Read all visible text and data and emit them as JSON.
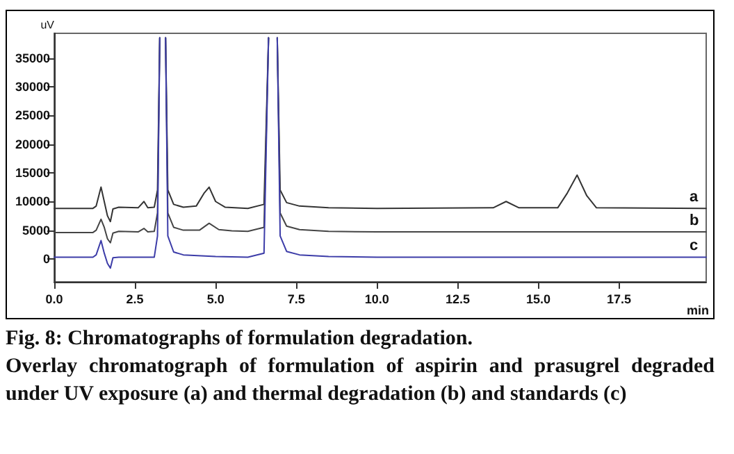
{
  "chart_data": {
    "type": "line",
    "title": "Fig. 8: Chromatographs of formulation degradation.",
    "subtitle": "Overlay chromatograph of formulation of aspirin and prasugrel degraded under UV exposure (a) and thermal degradation (b) and standards (c)",
    "xlabel": "min",
    "ylabel": "uV",
    "xlim": [
      0,
      20.2
    ],
    "xticks": [
      {
        "value": 0,
        "label": "0.0"
      },
      {
        "value": 2.5,
        "label": "2.5"
      },
      {
        "value": 5,
        "label": "5.0"
      },
      {
        "value": 7.5,
        "label": "7.5"
      },
      {
        "value": 10,
        "label": "10.0"
      },
      {
        "value": 12.5,
        "label": "12.5"
      },
      {
        "value": 15,
        "label": "15.0"
      },
      {
        "value": 17.5,
        "label": "17.5"
      }
    ],
    "ylim": [
      -4000,
      39300
    ],
    "yticks": [
      0,
      5000,
      10000,
      15000,
      20000,
      25000,
      30000,
      35000
    ],
    "grid": false,
    "legend": false,
    "marker": "none",
    "line_style": "solid",
    "series": [
      {
        "name": "a",
        "color": "#333333",
        "x": [
          0,
          1.2,
          1.3,
          1.45,
          1.55,
          1.65,
          1.74,
          1.82,
          2.0,
          2.6,
          2.78,
          2.9,
          3.1,
          3.2,
          3.27,
          3.36,
          3.45,
          3.52,
          3.7,
          4.0,
          4.4,
          4.65,
          4.8,
          5.0,
          5.3,
          6.0,
          6.5,
          6.64,
          6.78,
          6.91,
          7.0,
          7.2,
          7.6,
          8.5,
          10,
          13.6,
          14.0,
          14.4,
          15.6,
          15.9,
          16.2,
          16.5,
          16.8,
          20.2
        ],
        "values": [
          8800,
          8800,
          9200,
          12500,
          10000,
          7500,
          6500,
          8700,
          9000,
          8900,
          10000,
          8900,
          9000,
          12000,
          38500,
          null,
          38500,
          12000,
          9500,
          9000,
          9200,
          11500,
          12500,
          10000,
          9000,
          8800,
          9500,
          38500,
          null,
          38500,
          12000,
          9800,
          9200,
          8900,
          8800,
          8900,
          10000,
          8900,
          8900,
          11500,
          14600,
          11000,
          8900,
          8800
        ]
      },
      {
        "name": "b",
        "color": "#444444",
        "x": [
          0,
          1.2,
          1.3,
          1.45,
          1.55,
          1.65,
          1.74,
          1.82,
          2.0,
          2.6,
          2.78,
          2.9,
          3.1,
          3.2,
          3.27,
          3.36,
          3.45,
          3.52,
          3.7,
          4.0,
          4.5,
          4.8,
          5.1,
          5.5,
          6.0,
          6.5,
          6.64,
          6.78,
          6.91,
          7.0,
          7.2,
          7.6,
          8.5,
          10,
          20.2
        ],
        "values": [
          4600,
          4600,
          5000,
          6900,
          5500,
          3500,
          2800,
          4500,
          4800,
          4700,
          5300,
          4700,
          4800,
          8000,
          38500,
          null,
          38500,
          8000,
          5500,
          5000,
          5000,
          6200,
          5100,
          4900,
          4800,
          5500,
          38500,
          null,
          38500,
          8000,
          5700,
          5100,
          4800,
          4700,
          4700
        ]
      },
      {
        "name": "c",
        "color": "#3c3ca8",
        "x": [
          0,
          1.2,
          1.3,
          1.45,
          1.55,
          1.65,
          1.74,
          1.82,
          2.0,
          3.1,
          3.2,
          3.27,
          3.36,
          3.45,
          3.52,
          3.7,
          4.0,
          5.0,
          6.0,
          6.5,
          6.64,
          6.78,
          6.91,
          7.0,
          7.2,
          7.6,
          8.5,
          10,
          20.2
        ],
        "values": [
          300,
          300,
          700,
          3200,
          1000,
          -800,
          -1600,
          200,
          300,
          300,
          4000,
          38500,
          null,
          38500,
          4000,
          1200,
          700,
          400,
          300,
          1000,
          38500,
          null,
          38500,
          4000,
          1300,
          700,
          400,
          300,
          300
        ]
      }
    ]
  }
}
